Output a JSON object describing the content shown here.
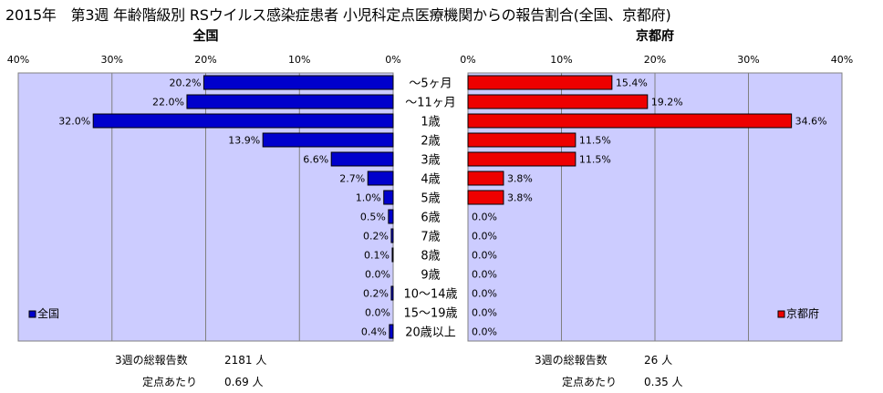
{
  "title": "2015年　第3週 年齢階級別 RSウイルス感染症患者 小児科定点医療機関からの報告割合(全国、京都府)",
  "chart_data": {
    "type": "bar",
    "categories": [
      "～5ヶ月",
      "～11ヶ月",
      "1歳",
      "2歳",
      "3歳",
      "4歳",
      "5歳",
      "6歳",
      "7歳",
      "8歳",
      "9歳",
      "10～14歳",
      "15～19歳",
      "20歳以上"
    ],
    "xlim": [
      0,
      40
    ],
    "ticks": [
      "0%",
      "10%",
      "20%",
      "30%",
      "40%"
    ],
    "grid": true,
    "legend_position": "bottom-left",
    "panels": [
      {
        "name": "全国",
        "legend": "全国",
        "color": "#0000cc",
        "direction": "left",
        "values": [
          20.2,
          22.0,
          32.0,
          13.9,
          6.6,
          2.7,
          1.0,
          0.5,
          0.2,
          0.1,
          0.0,
          0.2,
          0.0,
          0.4
        ],
        "labels": [
          "20.2%",
          "22.0%",
          "32.0%",
          "13.9%",
          "6.6%",
          "2.7%",
          "1.0%",
          "0.5%",
          "0.2%",
          "0.1%",
          "0.0%",
          "0.2%",
          "0.0%",
          "0.4%"
        ]
      },
      {
        "name": "京都府",
        "legend": "京都府",
        "color": "#ee0000",
        "direction": "right",
        "values": [
          15.4,
          19.2,
          34.6,
          11.5,
          11.5,
          3.8,
          3.8,
          0.0,
          0.0,
          0.0,
          0.0,
          0.0,
          0.0,
          0.0
        ],
        "labels": [
          "15.4%",
          "19.2%",
          "34.6%",
          "11.5%",
          "11.5%",
          "3.8%",
          "3.8%",
          "0.0%",
          "0.0%",
          "0.0%",
          "0.0%",
          "0.0%",
          "0.0%",
          "0.0%"
        ]
      }
    ]
  },
  "footer": {
    "national": {
      "total_label": "3週の総報告数",
      "total_value": "2181 人",
      "per_label": "定点あたり",
      "per_value": "0.69 人"
    },
    "kyoto": {
      "total_label": "3週の総報告数",
      "total_value": "26 人",
      "per_label": "定点あたり",
      "per_value": "0.35 人"
    }
  }
}
